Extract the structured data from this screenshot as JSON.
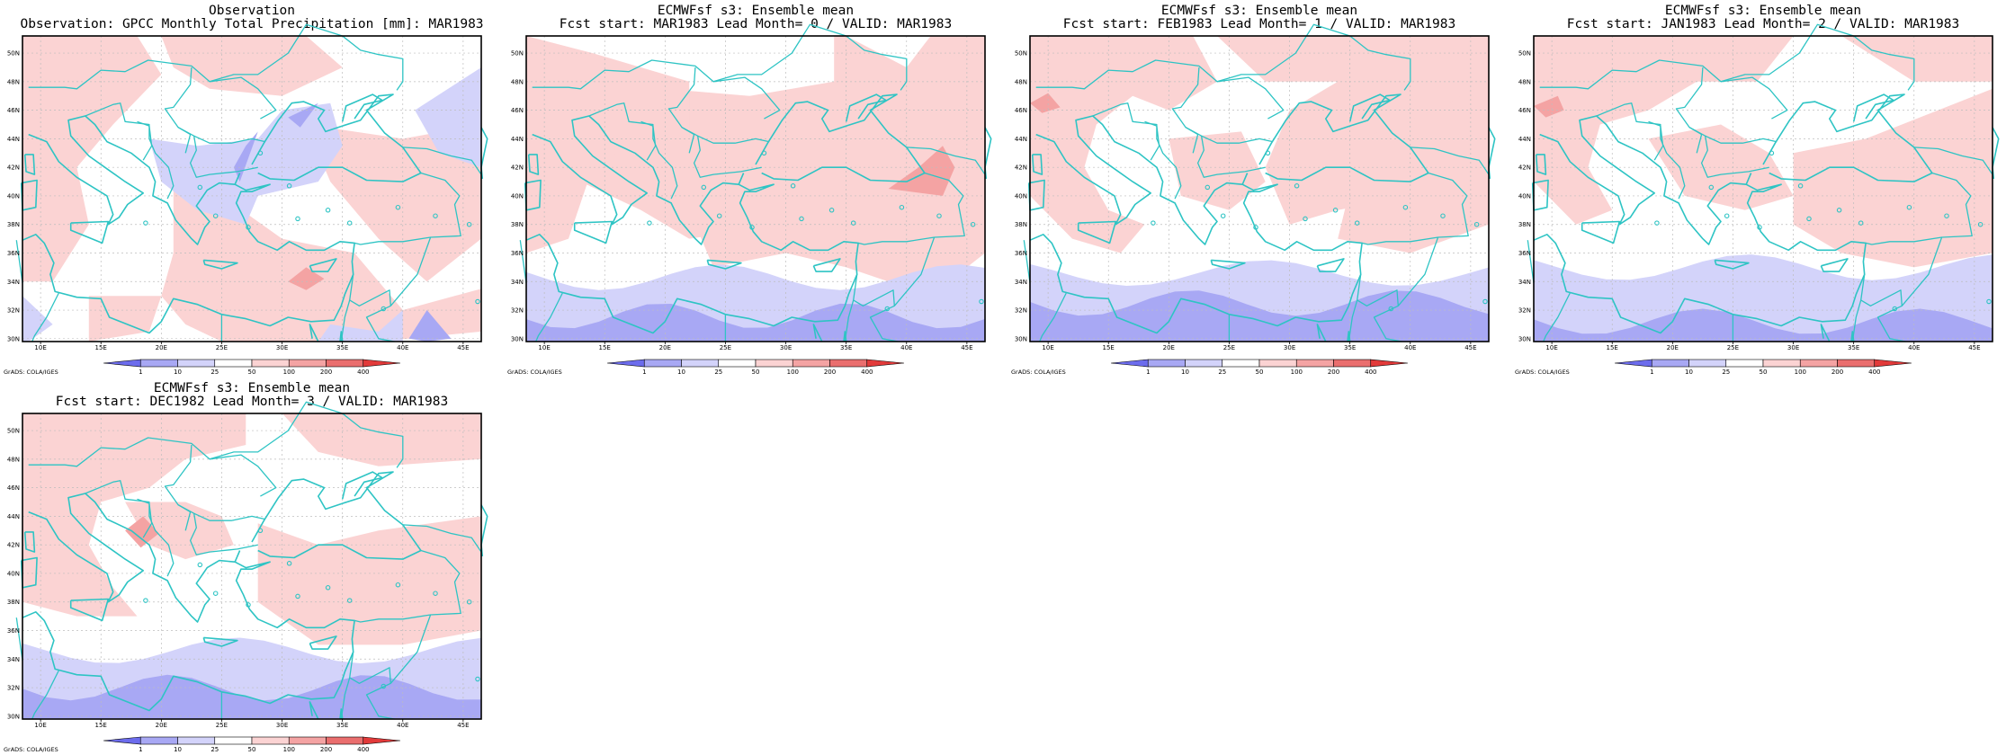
{
  "page": {
    "colors": {
      "frame": "#000000",
      "coast": "#2ec4c4",
      "grid": "#bdbdbd",
      "light_red": "#fbd3d3",
      "mid_red": "#f4a3a3",
      "strong_red": "#ea6e6e",
      "light_blue": "#d3d3fa",
      "mid_blue": "#a8a8f4",
      "strong_blue": "#6c6ced"
    }
  },
  "panels": [
    {
      "title_line1": "Observation",
      "title_line2": "Observation: GPCC Monthly Total Precipitation [mm]: MAR1983",
      "credit": "GrADS: COLA/IGES",
      "variant": "obs"
    },
    {
      "title_line1": "ECMWFsf s3: Ensemble mean",
      "title_line2": "Fcst start: MAR1983  Lead Month= 0 / VALID: MAR1983",
      "credit": "GrADS: COLA/IGES",
      "variant": "f0"
    },
    {
      "title_line1": "ECMWFsf s3: Ensemble mean",
      "title_line2": "Fcst start: FEB1983  Lead Month= 1 / VALID: MAR1983",
      "credit": "GrADS: COLA/IGES",
      "variant": "f1"
    },
    {
      "title_line1": "ECMWFsf s3: Ensemble mean",
      "title_line2": "Fcst start: JAN1983  Lead Month= 2 / VALID: MAR1983",
      "credit": "GrADS: COLA/IGES",
      "variant": "f2"
    },
    {
      "title_line1": "ECMWFsf s3: Ensemble mean",
      "title_line2": "Fcst start: DEC1982  Lead Month= 3 / VALID: MAR1983",
      "credit": "GrADS: COLA/IGES",
      "variant": "f3"
    }
  ],
  "map": {
    "lon_labels": [
      "10E",
      "15E",
      "20E",
      "25E",
      "30E",
      "35E",
      "40E",
      "45E"
    ],
    "lat_labels": [
      "30N",
      "32N",
      "34N",
      "36N",
      "38N",
      "40N",
      "42N",
      "44N",
      "46N",
      "48N",
      "50N"
    ]
  },
  "colorbar": {
    "labels": [
      "1",
      "10",
      "25",
      "50",
      "100",
      "200",
      "400"
    ],
    "colors": [
      "#6c6ced",
      "#a8a8f4",
      "#d3d3fa",
      "#ffffff",
      "#fbd3d3",
      "#f4a3a3",
      "#ea6e6e",
      "#e23a3a"
    ]
  }
}
